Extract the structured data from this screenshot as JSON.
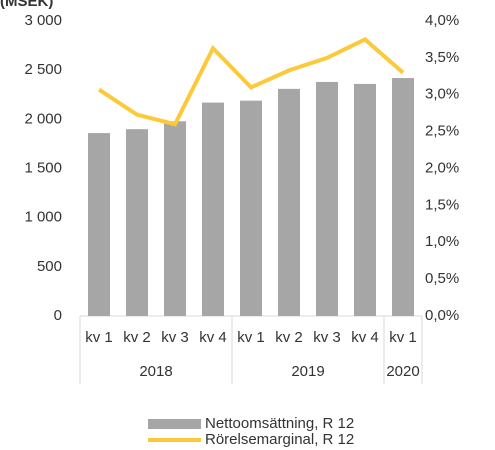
{
  "chart_data": {
    "type": "bar_line",
    "unit_label": "(MSEK)",
    "categories": [
      "kv 1",
      "kv 2",
      "kv 3",
      "kv 4",
      "kv 1",
      "kv 2",
      "kv 3",
      "kv 4",
      "kv 1"
    ],
    "x_groups": [
      {
        "label": "2018",
        "count": 4
      },
      {
        "label": "2019",
        "count": 4
      },
      {
        "label": "2020",
        "count": 1
      }
    ],
    "series": [
      {
        "name": "Nettoomsättning, R 12",
        "color": "#a6a6a6",
        "type": "bar",
        "axis": "y",
        "values": [
          1860,
          1900,
          1980,
          2170,
          2190,
          2310,
          2380,
          2360,
          2420
        ]
      },
      {
        "name": "Rörelsemarginal, R 12",
        "color": "#fcc93a",
        "type": "line",
        "axis": "y2",
        "values": [
          3.07,
          2.73,
          2.6,
          3.63,
          3.1,
          3.33,
          3.5,
          3.75,
          3.3
        ]
      }
    ],
    "ylim": [
      0,
      3000
    ],
    "yticks": [
      0,
      500,
      {
        "value": 1000,
        "label": "1 000"
      },
      {
        "value": 1500,
        "label": "1 500"
      },
      {
        "value": 2000,
        "label": "2 000"
      },
      {
        "value": 2500,
        "label": "2 500"
      },
      {
        "value": 3000,
        "label": "3 000"
      }
    ],
    "y2lim": [
      0,
      4
    ],
    "y2ticks": [
      {
        "value": 0,
        "label": "0,0%"
      },
      {
        "value": 0.5,
        "label": "0,5%"
      },
      {
        "value": 1,
        "label": "1,0%"
      },
      {
        "value": 1.5,
        "label": "1,5%"
      },
      {
        "value": 2,
        "label": "2,0%"
      },
      {
        "value": 2.5,
        "label": "2,5%"
      },
      {
        "value": 3,
        "label": "3,0%"
      },
      {
        "value": 3.5,
        "label": "3,5%"
      },
      {
        "value": 4,
        "label": "4,0%"
      }
    ],
    "grid": false
  }
}
